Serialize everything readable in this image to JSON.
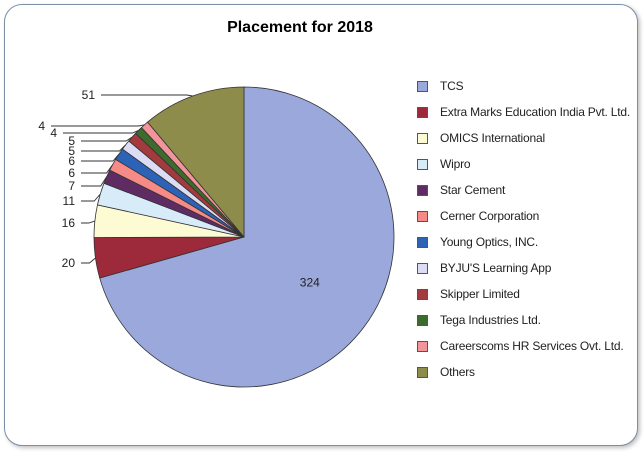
{
  "chart_data": {
    "type": "pie",
    "title": "Placement for 2018",
    "legend_position": "right",
    "slices": [
      {
        "name": "TCS",
        "value": 324,
        "color": "#9aa8dc"
      },
      {
        "name": "Extra Marks Education India Pvt. Ltd.",
        "value": 20,
        "color": "#9c2a3a"
      },
      {
        "name": "OMICS International",
        "value": 16,
        "color": "#fdfbd4"
      },
      {
        "name": "Wipro",
        "value": 11,
        "color": "#d7ecf8"
      },
      {
        "name": "Star Cement",
        "value": 7,
        "color": "#5e2c63"
      },
      {
        "name": "Cerner Corporation",
        "value": 6,
        "color": "#f58a86"
      },
      {
        "name": "Young Optics, INC.",
        "value": 6,
        "color": "#2d63b6"
      },
      {
        "name": "BYJU'S Learning App",
        "value": 5,
        "color": "#dcdcf4"
      },
      {
        "name": "Skipper Limited",
        "value": 5,
        "color": "#a23a3e"
      },
      {
        "name": "Tega Industries Ltd.",
        "value": 4,
        "color": "#3d6b2e"
      },
      {
        "name": "Careerscoms HR Services Ovt. Ltd.",
        "value": 4,
        "color": "#f3949a"
      },
      {
        "name": "Others",
        "value": 51,
        "color": "#8e8c4a"
      }
    ]
  }
}
